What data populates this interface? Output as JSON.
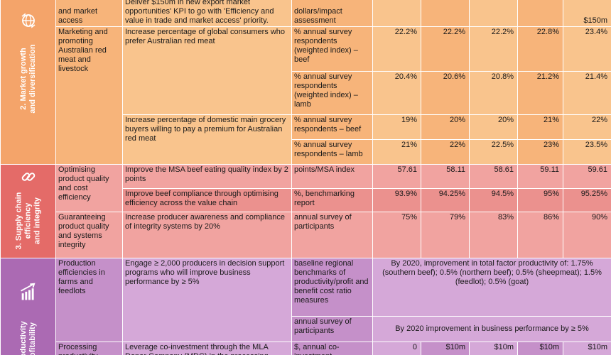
{
  "section2": {
    "label_line1": "2. Market growth",
    "label_line2": "and diversification",
    "icon": "globe-arrows-icon",
    "color": "#f4a46a",
    "rows": [
      {
        "program": "and market access",
        "kpi": "Deliver $150m in new export market opportunities' KPI to go with 'Efficiency and value in trade and market access' priority.",
        "measure": "dollars/impact assessment",
        "v1": "",
        "v2": "",
        "v3": "",
        "v4": "",
        "v5": "$150m"
      },
      {
        "program": "Marketing and promoting Australian red meat and livestock",
        "kpi": "Increase percentage of global consumers who prefer Australian red meat",
        "measure": "% annual survey respondents (weighted index) – beef",
        "v1": "22.2%",
        "v2": "22.2%",
        "v3": "22.2%",
        "v4": "22.8%",
        "v5": "23.4%"
      },
      {
        "measure": "% annual survey respondents (weighted index) – lamb",
        "v1": "20.4%",
        "v2": "20.6%",
        "v3": "20.8%",
        "v4": "21.2%",
        "v5": "21.4%"
      },
      {
        "kpi": "Increase percentage of domestic main grocery buyers willing to pay a premium for Australian red meat",
        "measure": "% annual survey respondents – beef",
        "v1": "19%",
        "v2": "20%",
        "v3": "20%",
        "v4": "21%",
        "v5": "22%"
      },
      {
        "measure": "% annual survey respondents – lamb",
        "v1": "21%",
        "v2": "22%",
        "v3": "22.5%",
        "v4": "23%",
        "v5": "23.5%"
      }
    ]
  },
  "section3": {
    "label_line1": "3. Supply chain",
    "label_line2": "efficiency",
    "label_line3": "and integrity",
    "icon": "chain-link-icon",
    "color": "#e46b68",
    "rows": [
      {
        "program": "Optimising product quality and cost efficiency",
        "kpi": "Improve the MSA beef eating quality index by 2 points",
        "measure": "points/MSA index",
        "v1": "57.61",
        "v2": "58.11",
        "v3": "58.61",
        "v4": "59.11",
        "v5": "59.61"
      },
      {
        "kpi": "Improve beef compliance through optimising efficiency across the value chain",
        "measure": "%, benchmarking report",
        "v1": "93.9%",
        "v2": "94.25%",
        "v3": "94.5%",
        "v4": "95%",
        "v5": "95.25%"
      },
      {
        "program": "Guaranteeing product quality and systems integrity",
        "kpi": "Increase producer awareness and compliance of integrity systems by 20%",
        "measure": "annual survey of participants",
        "v1": "75%",
        "v2": "79%",
        "v3": "83%",
        "v4": "86%",
        "v5": "90%"
      }
    ]
  },
  "section4": {
    "label_line1": "Productivity",
    "label_line2": "profitability",
    "icon": "bar-chart-arrow-icon",
    "color": "#ab6ab3",
    "rows": [
      {
        "program": "Production efficiencies in farms and feedlots",
        "kpi": "Engage ≥ 2,000 producers in decision support programs who will improve business performance by ≥ 5%",
        "measure": "baseline regional benchmarks of productivity/profit and benefit cost ratio measures",
        "span_text": "By 2020, improvement in total factor productivity of: 1.75% (southern beef); 0.5% (northern beef); 0.5% (sheepmeat); 1.5% (feedlot); 0.5% (goat)"
      },
      {
        "measure": "annual survey of participants",
        "span_text": "By 2020 improvement in business performance by ≥ 5%"
      },
      {
        "program": "Processing productivity",
        "kpi": "Leverage co-investment through the MLA Donor Company (MDC) in the processing",
        "measure": "$, annual co-investment",
        "v1": "0",
        "v2": "$10m",
        "v3": "$10m",
        "v4": "$10m",
        "v5": "$10m"
      }
    ]
  }
}
